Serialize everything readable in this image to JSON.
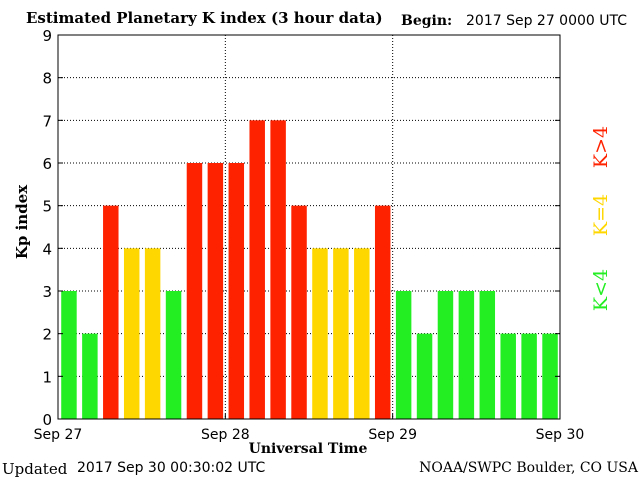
{
  "header": {
    "title": "Estimated Planetary K index (3 hour data)",
    "begin_label": "Begin:",
    "begin_date": "2017 Sep 27 0000 UTC"
  },
  "footer": {
    "updated_label": "Updated",
    "updated_time": "2017 Sep 30 00:30:02 UTC",
    "credit": "NOAA/SWPC Boulder, CO USA"
  },
  "legend": {
    "items": [
      {
        "label": "K<4",
        "color": "#22ee22"
      },
      {
        "label": "K=4",
        "color": "#ffd700"
      },
      {
        "label": "K>4",
        "color": "#ff2200"
      }
    ]
  },
  "chart_data": {
    "type": "bar",
    "title": "Estimated Planetary K index (3 hour data)",
    "xlabel": "Universal Time",
    "ylabel": "Kp index",
    "ylim": [
      0,
      9
    ],
    "yticks": [
      0,
      1,
      2,
      3,
      4,
      5,
      6,
      7,
      8,
      9
    ],
    "xtick_labels": [
      "Sep 27",
      "Sep 28",
      "Sep 29",
      "Sep 30"
    ],
    "grid": true,
    "values": [
      3,
      2,
      5,
      4,
      4,
      3,
      6,
      6,
      6,
      7,
      7,
      5,
      4,
      4,
      4,
      5,
      3,
      2,
      3,
      3,
      3,
      2,
      2,
      2
    ],
    "colors": {
      "low": "#22ee22",
      "equal": "#ffd700",
      "high": "#ff2200"
    }
  }
}
